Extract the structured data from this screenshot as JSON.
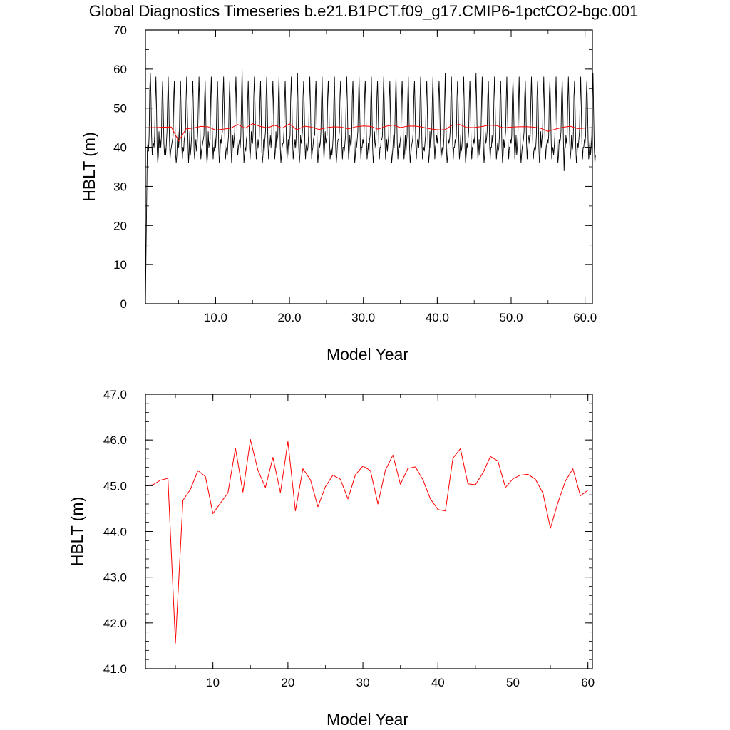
{
  "figure": {
    "title": "Global Diagnostics Timeseries b.e21.B1PCT.f09_g17.CMIP6-1pctCO2-bgc.001"
  },
  "chart_data": [
    {
      "type": "line",
      "xlabel": "Model Year",
      "ylabel": "HBLT (m)",
      "xlim": [
        0.5,
        61.0
      ],
      "ylim": [
        0,
        70
      ],
      "xticks": [
        10,
        20,
        30,
        40,
        50,
        60
      ],
      "xtick_labels": [
        "10.0",
        "20.0",
        "30.0",
        "40.0",
        "50.0",
        "60.0"
      ],
      "yticks": [
        0,
        10,
        20,
        30,
        40,
        50,
        60,
        70
      ],
      "ytick_labels": [
        "0",
        "10",
        "20",
        "30",
        "40",
        "50",
        "60",
        "70"
      ],
      "grid": false,
      "series": [
        {
          "kind": "monthly",
          "color": "#000000",
          "x_start": 0.5,
          "x_step": 0.0833333,
          "values": [
            0,
            13,
            26,
            39,
            41,
            39,
            43,
            55,
            59,
            53,
            43,
            38,
            40,
            41,
            40,
            43,
            52,
            58,
            50,
            40,
            36,
            38,
            44,
            40,
            42,
            40,
            43,
            53,
            57,
            49,
            41,
            38,
            40,
            38,
            41,
            44,
            52,
            58,
            51,
            42,
            37,
            39,
            40,
            41,
            42,
            43,
            53,
            57,
            47,
            38,
            36,
            38,
            42,
            44,
            40,
            43,
            52,
            57,
            49,
            40,
            37,
            40,
            39,
            42,
            43,
            44,
            52,
            58,
            50,
            42,
            36,
            39,
            44,
            38,
            40,
            43,
            53,
            57,
            49,
            39,
            37,
            40,
            42,
            39,
            41,
            44,
            52,
            58,
            51,
            42,
            37,
            39,
            40,
            41,
            42,
            43,
            52,
            57,
            48,
            39,
            36,
            38,
            44,
            40,
            41,
            42,
            53,
            58,
            49,
            41,
            37,
            40,
            39,
            43,
            40,
            43,
            52,
            57,
            51,
            40,
            36,
            38,
            42,
            41,
            43,
            44,
            53,
            58,
            50,
            42,
            37,
            39,
            40,
            38,
            41,
            43,
            52,
            57,
            49,
            40,
            36,
            39,
            43,
            40,
            42,
            44,
            53,
            58,
            51,
            41,
            38,
            40,
            41,
            42,
            40,
            43,
            52,
            60,
            50,
            42,
            36,
            38,
            40,
            39,
            42,
            43,
            52,
            57,
            49,
            40,
            37,
            40,
            44,
            41,
            41,
            44,
            53,
            58,
            51,
            42,
            37,
            39,
            40,
            42,
            40,
            43,
            52,
            57,
            48,
            39,
            36,
            38,
            42,
            39,
            42,
            44,
            53,
            58,
            50,
            41,
            37,
            40,
            41,
            43,
            40,
            43,
            52,
            57,
            51,
            42,
            37,
            39,
            44,
            40,
            42,
            43,
            53,
            58,
            49,
            40,
            36,
            38,
            40,
            41,
            41,
            44,
            52,
            57,
            50,
            41,
            37,
            40,
            42,
            38,
            42,
            43,
            53,
            58,
            51,
            42,
            37,
            39,
            40,
            42,
            40,
            43,
            52,
            59,
            49,
            40,
            36,
            38,
            43,
            41,
            42,
            44,
            53,
            57,
            50,
            41,
            37,
            40,
            41,
            39,
            40,
            43,
            52,
            58,
            51,
            42,
            37,
            39,
            40,
            42,
            43,
            43,
            53,
            57,
            49,
            40,
            36,
            38,
            42,
            40,
            41,
            44,
            52,
            58,
            50,
            41,
            37,
            40,
            44,
            41,
            42,
            43,
            53,
            57,
            51,
            42,
            37,
            39,
            40,
            38,
            40,
            43,
            52,
            58,
            49,
            40,
            36,
            38,
            41,
            42,
            42,
            44,
            53,
            57,
            50,
            41,
            37,
            40,
            40,
            39,
            41,
            43,
            52,
            58,
            51,
            42,
            37,
            39,
            43,
            41,
            40,
            43,
            53,
            57,
            49,
            40,
            36,
            38,
            42,
            40,
            42,
            44,
            52,
            58,
            50,
            41,
            37,
            40,
            40,
            42,
            41,
            43,
            53,
            57,
            51,
            42,
            37,
            39,
            41,
            38,
            42,
            43,
            52,
            58,
            49,
            40,
            36,
            38,
            44,
            41,
            40,
            44,
            53,
            57,
            50,
            41,
            37,
            40,
            40,
            42,
            42,
            43,
            52,
            58,
            51,
            42,
            37,
            39,
            42,
            39,
            41,
            43,
            53,
            57,
            48,
            39,
            36,
            38,
            40,
            43,
            40,
            44,
            52,
            58,
            50,
            41,
            37,
            40,
            41,
            40,
            42,
            43,
            53,
            57,
            51,
            42,
            37,
            39,
            43,
            38,
            41,
            43,
            52,
            58,
            49,
            40,
            36,
            38,
            40,
            41,
            42,
            44,
            53,
            57,
            50,
            41,
            37,
            40,
            42,
            42,
            40,
            43,
            52,
            58,
            51,
            42,
            37,
            39,
            40,
            39,
            41,
            43,
            53,
            57,
            49,
            40,
            36,
            38,
            44,
            40,
            42,
            44,
            52,
            58,
            50,
            41,
            37,
            40,
            41,
            43,
            41,
            43,
            53,
            57,
            51,
            42,
            37,
            39,
            40,
            38,
            40,
            43,
            52,
            59,
            48,
            39,
            36,
            38,
            42,
            41,
            42,
            44,
            53,
            58,
            50,
            41,
            37,
            40,
            40,
            42,
            41,
            43,
            52,
            57,
            51,
            42,
            37,
            39,
            43,
            39,
            40,
            43,
            53,
            58,
            49,
            40,
            36,
            38,
            41,
            40,
            42,
            44,
            52,
            57,
            50,
            41,
            37,
            40,
            40,
            42,
            41,
            43,
            53,
            59,
            51,
            42,
            37,
            39,
            42,
            38,
            40,
            43,
            52,
            58,
            49,
            40,
            36,
            38,
            44,
            41,
            42,
            44,
            53,
            57,
            50,
            41,
            37,
            40,
            40,
            43,
            41,
            43,
            52,
            58,
            51,
            42,
            37,
            39,
            41,
            39,
            40,
            43,
            53,
            57,
            49,
            40,
            36,
            38,
            42,
            40,
            42,
            44,
            52,
            58,
            50,
            41,
            37,
            40,
            40,
            42,
            41,
            43,
            53,
            57,
            51,
            42,
            37,
            39,
            43,
            38,
            40,
            43,
            52,
            58,
            49,
            40,
            36,
            38,
            40,
            41,
            42,
            44,
            53,
            57,
            50,
            41,
            37,
            40,
            42,
            43,
            41,
            43,
            52,
            58,
            51,
            42,
            37,
            39,
            40,
            39,
            40,
            43,
            53,
            57,
            49,
            40,
            36,
            38,
            44,
            40,
            42,
            44,
            52,
            58,
            50,
            41,
            37,
            40,
            41,
            42,
            41,
            43,
            53,
            57,
            51,
            42,
            37,
            39,
            40,
            38,
            40,
            43,
            52,
            58,
            49,
            40,
            36,
            38,
            42,
            41,
            42,
            44,
            53,
            57,
            50,
            41,
            34,
            40,
            40,
            43,
            41,
            43,
            52,
            58,
            51,
            42,
            37,
            39,
            43,
            39,
            40,
            43,
            53,
            57,
            49,
            40,
            36,
            38,
            41,
            40,
            42,
            44,
            52,
            58,
            50,
            41,
            37,
            40,
            40,
            42,
            41,
            43,
            53,
            57,
            51,
            42,
            37,
            39,
            42,
            38,
            40,
            43,
            52,
            59,
            49,
            40,
            36,
            38
          ]
        },
        {
          "kind": "annual",
          "color": "#ff0000",
          "x": [
            1,
            2,
            3,
            4,
            5,
            6,
            7,
            8,
            9,
            10,
            11,
            12,
            13,
            14,
            15,
            16,
            17,
            18,
            19,
            20,
            21,
            22,
            23,
            24,
            25,
            26,
            27,
            28,
            29,
            30,
            31,
            32,
            33,
            34,
            35,
            36,
            37,
            38,
            39,
            40,
            41,
            42,
            43,
            44,
            45,
            46,
            47,
            48,
            49,
            50,
            51,
            52,
            53,
            54,
            55,
            56,
            57,
            58,
            59,
            60
          ],
          "values": [
            45.0,
            45.02,
            45.12,
            45.16,
            41.56,
            44.68,
            44.92,
            45.33,
            45.2,
            44.39,
            44.62,
            44.84,
            45.82,
            44.86,
            46.01,
            45.34,
            44.96,
            45.62,
            44.85,
            45.97,
            44.45,
            45.37,
            45.13,
            44.54,
            44.98,
            45.23,
            45.14,
            44.71,
            45.24,
            45.43,
            45.33,
            44.6,
            45.34,
            45.67,
            45.03,
            45.38,
            45.41,
            45.13,
            44.71,
            44.48,
            44.45,
            45.6,
            45.81,
            45.04,
            45.02,
            45.28,
            45.64,
            45.54,
            44.96,
            45.15,
            45.23,
            45.25,
            45.14,
            44.84,
            44.07,
            44.63,
            45.1,
            45.37,
            44.78,
            44.9
          ]
        }
      ]
    },
    {
      "type": "line",
      "xlabel": "Model Year",
      "ylabel": "HBLT (m)",
      "xlim": [
        1,
        60.6
      ],
      "ylim": [
        41,
        47
      ],
      "xticks": [
        10,
        20,
        30,
        40,
        50,
        60
      ],
      "xtick_labels": [
        "10",
        "20",
        "30",
        "40",
        "50",
        "60"
      ],
      "yticks": [
        41,
        42,
        43,
        44,
        45,
        46,
        47
      ],
      "ytick_labels": [
        "41.0",
        "42.0",
        "43.0",
        "44.0",
        "45.0",
        "46.0",
        "47.0"
      ],
      "grid": false,
      "series": [
        {
          "kind": "annual",
          "color": "#ff0000",
          "x": [
            1,
            2,
            3,
            4,
            5,
            6,
            7,
            8,
            9,
            10,
            11,
            12,
            13,
            14,
            15,
            16,
            17,
            18,
            19,
            20,
            21,
            22,
            23,
            24,
            25,
            26,
            27,
            28,
            29,
            30,
            31,
            32,
            33,
            34,
            35,
            36,
            37,
            38,
            39,
            40,
            41,
            42,
            43,
            44,
            45,
            46,
            47,
            48,
            49,
            50,
            51,
            52,
            53,
            54,
            55,
            56,
            57,
            58,
            59,
            60
          ],
          "values": [
            45.0,
            45.02,
            45.12,
            45.16,
            41.56,
            44.68,
            44.92,
            45.33,
            45.2,
            44.39,
            44.62,
            44.84,
            45.82,
            44.86,
            46.01,
            45.34,
            44.96,
            45.62,
            44.85,
            45.97,
            44.45,
            45.37,
            45.13,
            44.54,
            44.98,
            45.23,
            45.14,
            44.71,
            45.24,
            45.43,
            45.33,
            44.6,
            45.34,
            45.67,
            45.03,
            45.38,
            45.41,
            45.13,
            44.71,
            44.48,
            44.45,
            45.6,
            45.81,
            45.04,
            45.02,
            45.28,
            45.64,
            45.54,
            44.96,
            45.15,
            45.23,
            45.25,
            45.14,
            44.84,
            44.07,
            44.63,
            45.1,
            45.37,
            44.78,
            44.9
          ]
        }
      ]
    }
  ]
}
